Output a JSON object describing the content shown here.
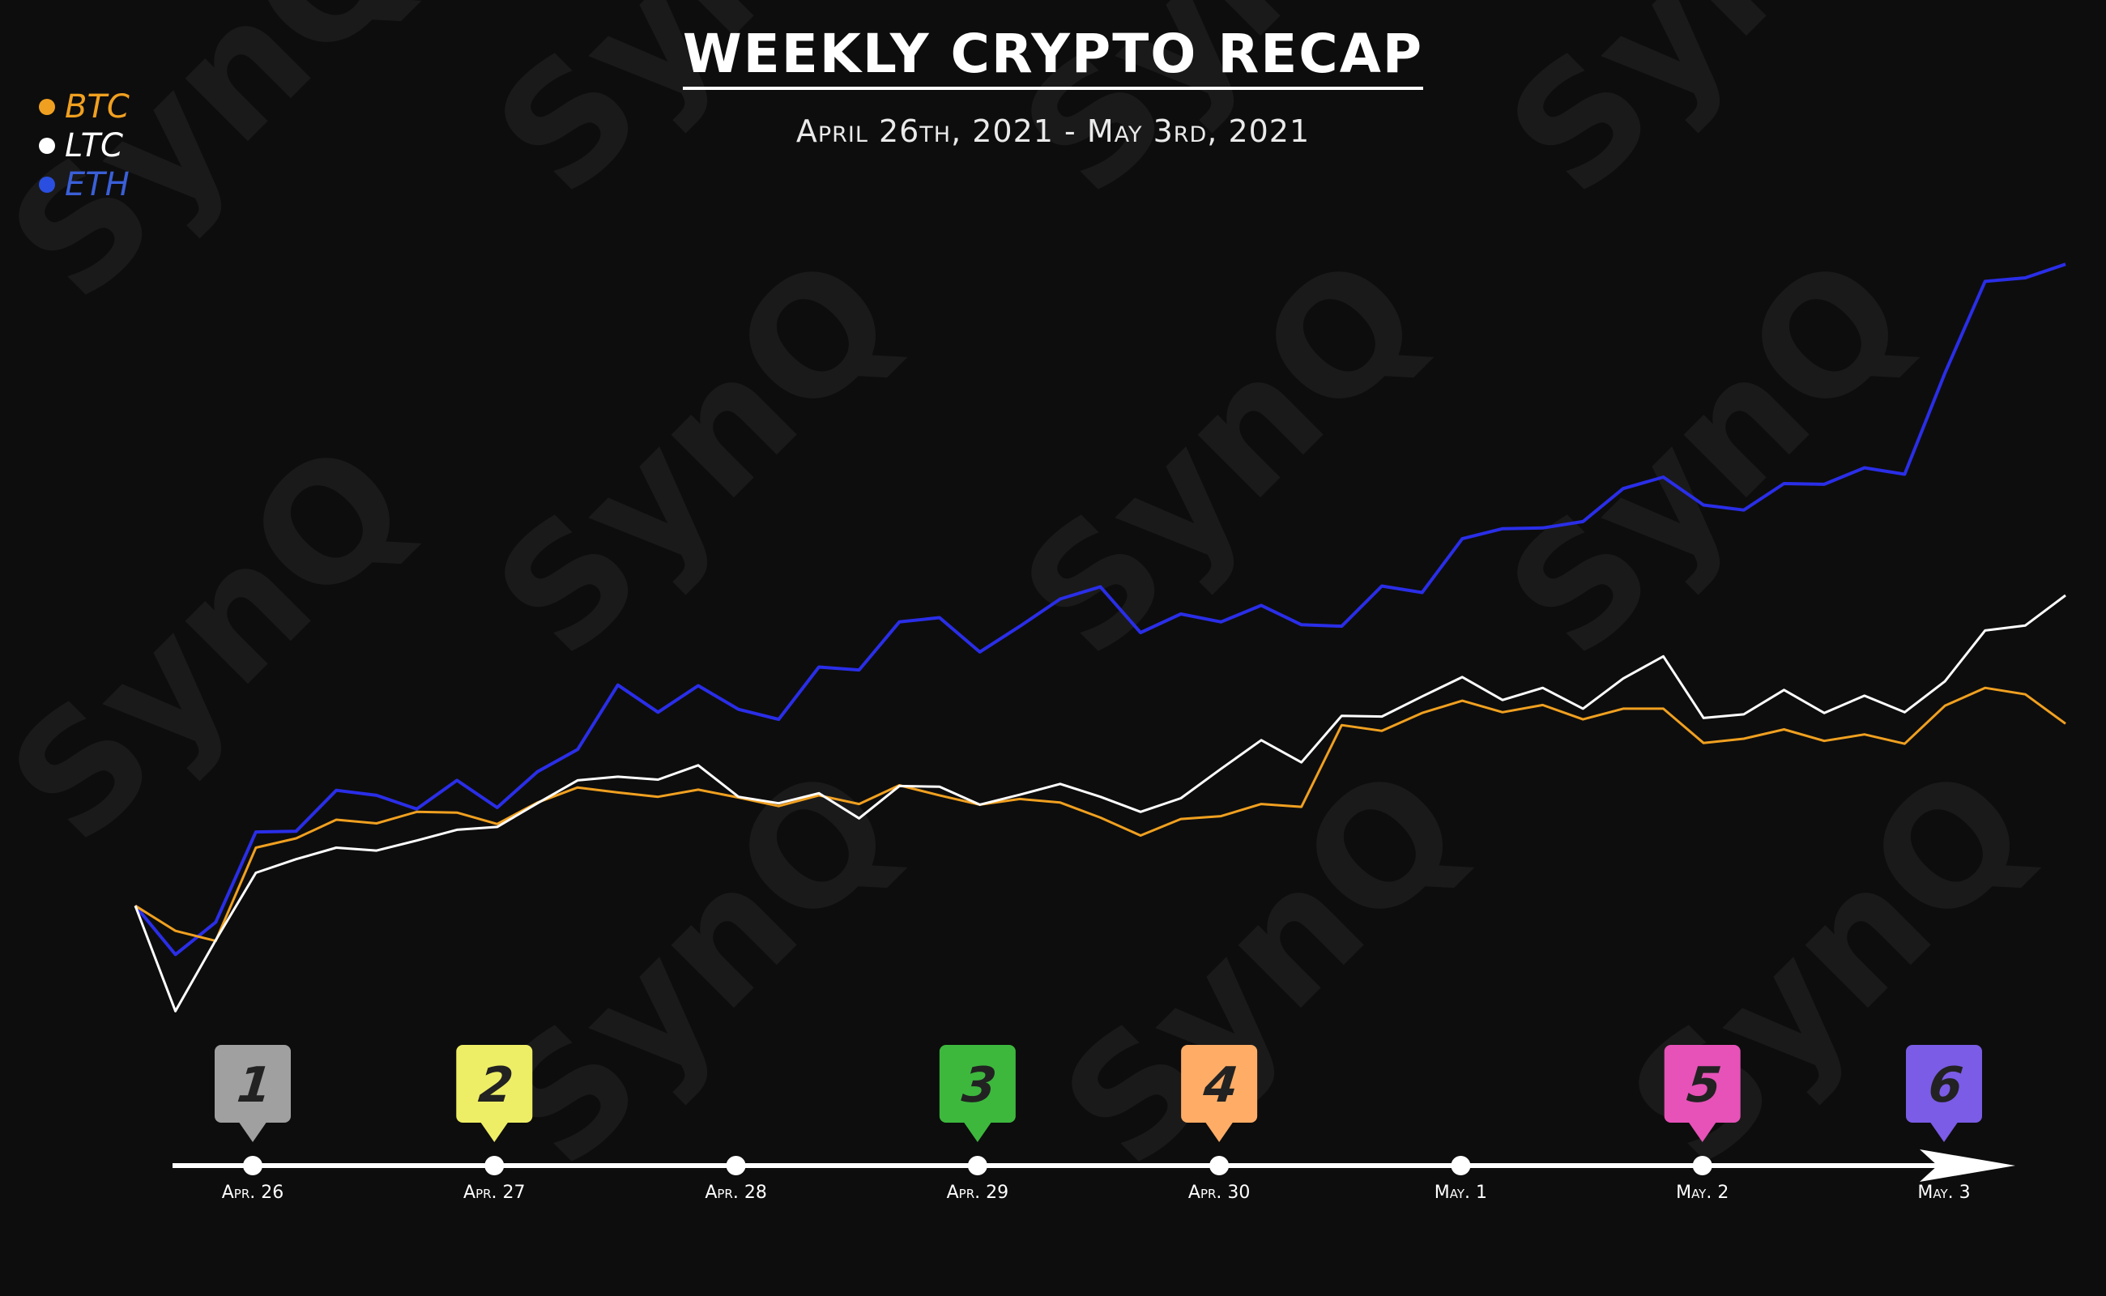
{
  "title": "WEEKLY CRYPTO RECAP",
  "subtitle": "April 26th, 2021 - May 3rd, 2021",
  "legend": [
    {
      "label": "BTC",
      "color": "#f0a020"
    },
    {
      "label": "LTC",
      "color": "#ffffff"
    },
    {
      "label": "ETH",
      "color": "#3a5fd8"
    }
  ],
  "watermark": "SynQ",
  "chart_data": {
    "type": "line",
    "grid": false,
    "legend_position": "top-left",
    "series": [
      {
        "name": "BTC",
        "color": "#f0a020",
        "values": [
          0.2,
          -3.3,
          -4.7,
          8.3,
          9.6,
          12.2,
          11.7,
          13.3,
          13.2,
          11.6,
          14.6,
          16.7,
          16,
          15.4,
          16.4,
          15.3,
          14.1,
          15.6,
          14.4,
          17,
          15.6,
          14.3,
          15.1,
          14.6,
          12.5,
          10,
          12.3,
          12.7,
          14.4,
          14,
          25.4,
          24.6,
          27.1,
          28.8,
          27.2,
          28.2,
          26.2,
          27.7,
          27.7,
          22.9,
          23.5,
          24.8,
          23.2,
          24.1,
          22.8,
          28.1,
          30.6,
          29.7,
          25.6
        ]
      },
      {
        "name": "LTC",
        "color": "#ffffff",
        "values": [
          0.2,
          -14.5,
          -4.6,
          4.8,
          6.7,
          8.3,
          7.9,
          9.3,
          10.8,
          11.2,
          14.5,
          17.7,
          18.2,
          17.8,
          19.8,
          15.4,
          14.5,
          15.9,
          12.4,
          16.9,
          16.8,
          14.3,
          15.7,
          17.2,
          15.4,
          13.3,
          15.2,
          19.3,
          23.3,
          20.2,
          26.7,
          26.6,
          29.4,
          32.1,
          28.9,
          30.6,
          27.7,
          31.9,
          35,
          26.4,
          26.9,
          30.3,
          27.1,
          29.5,
          27.2,
          31.5,
          38.6,
          39.3,
          43.5
        ]
      },
      {
        "name": "ETH",
        "color": "#2a2ee8",
        "values": [
          0.2,
          -6.6,
          -2.1,
          10.5,
          10.6,
          16.3,
          15.6,
          13.7,
          17.7,
          13.9,
          18.9,
          22,
          31,
          27.2,
          30.9,
          27.6,
          26.2,
          33.5,
          33.1,
          39.8,
          40.4,
          35.6,
          39.2,
          43,
          44.7,
          38.3,
          40.9,
          39.8,
          42.1,
          39.4,
          39.2,
          44.8,
          43.9,
          51.4,
          52.8,
          52.9,
          53.8,
          58.4,
          60,
          56.1,
          55.4,
          59.1,
          59,
          61.3,
          60.4,
          74.5,
          87.3,
          87.8,
          89.7
        ]
      }
    ],
    "ylim": [
      -20,
      100
    ],
    "timeline": {
      "days": [
        "Apr. 26",
        "Apr. 27",
        "Apr. 28",
        "Apr. 29",
        "Apr. 30",
        "May. 1",
        "May. 2",
        "May. 3"
      ],
      "markers": [
        {
          "label": "1",
          "day_index": 0,
          "color": "#a0a0a0"
        },
        {
          "label": "2",
          "day_index": 1,
          "color": "#eeee66"
        },
        {
          "label": "3",
          "day_index": 3,
          "color": "#3db83d"
        },
        {
          "label": "4",
          "day_index": 4,
          "color": "#ffad66"
        },
        {
          "label": "5",
          "day_index": 6,
          "color": "#e652b8"
        },
        {
          "label": "6",
          "day_index": 7,
          "color": "#7b5ce6"
        }
      ]
    }
  }
}
